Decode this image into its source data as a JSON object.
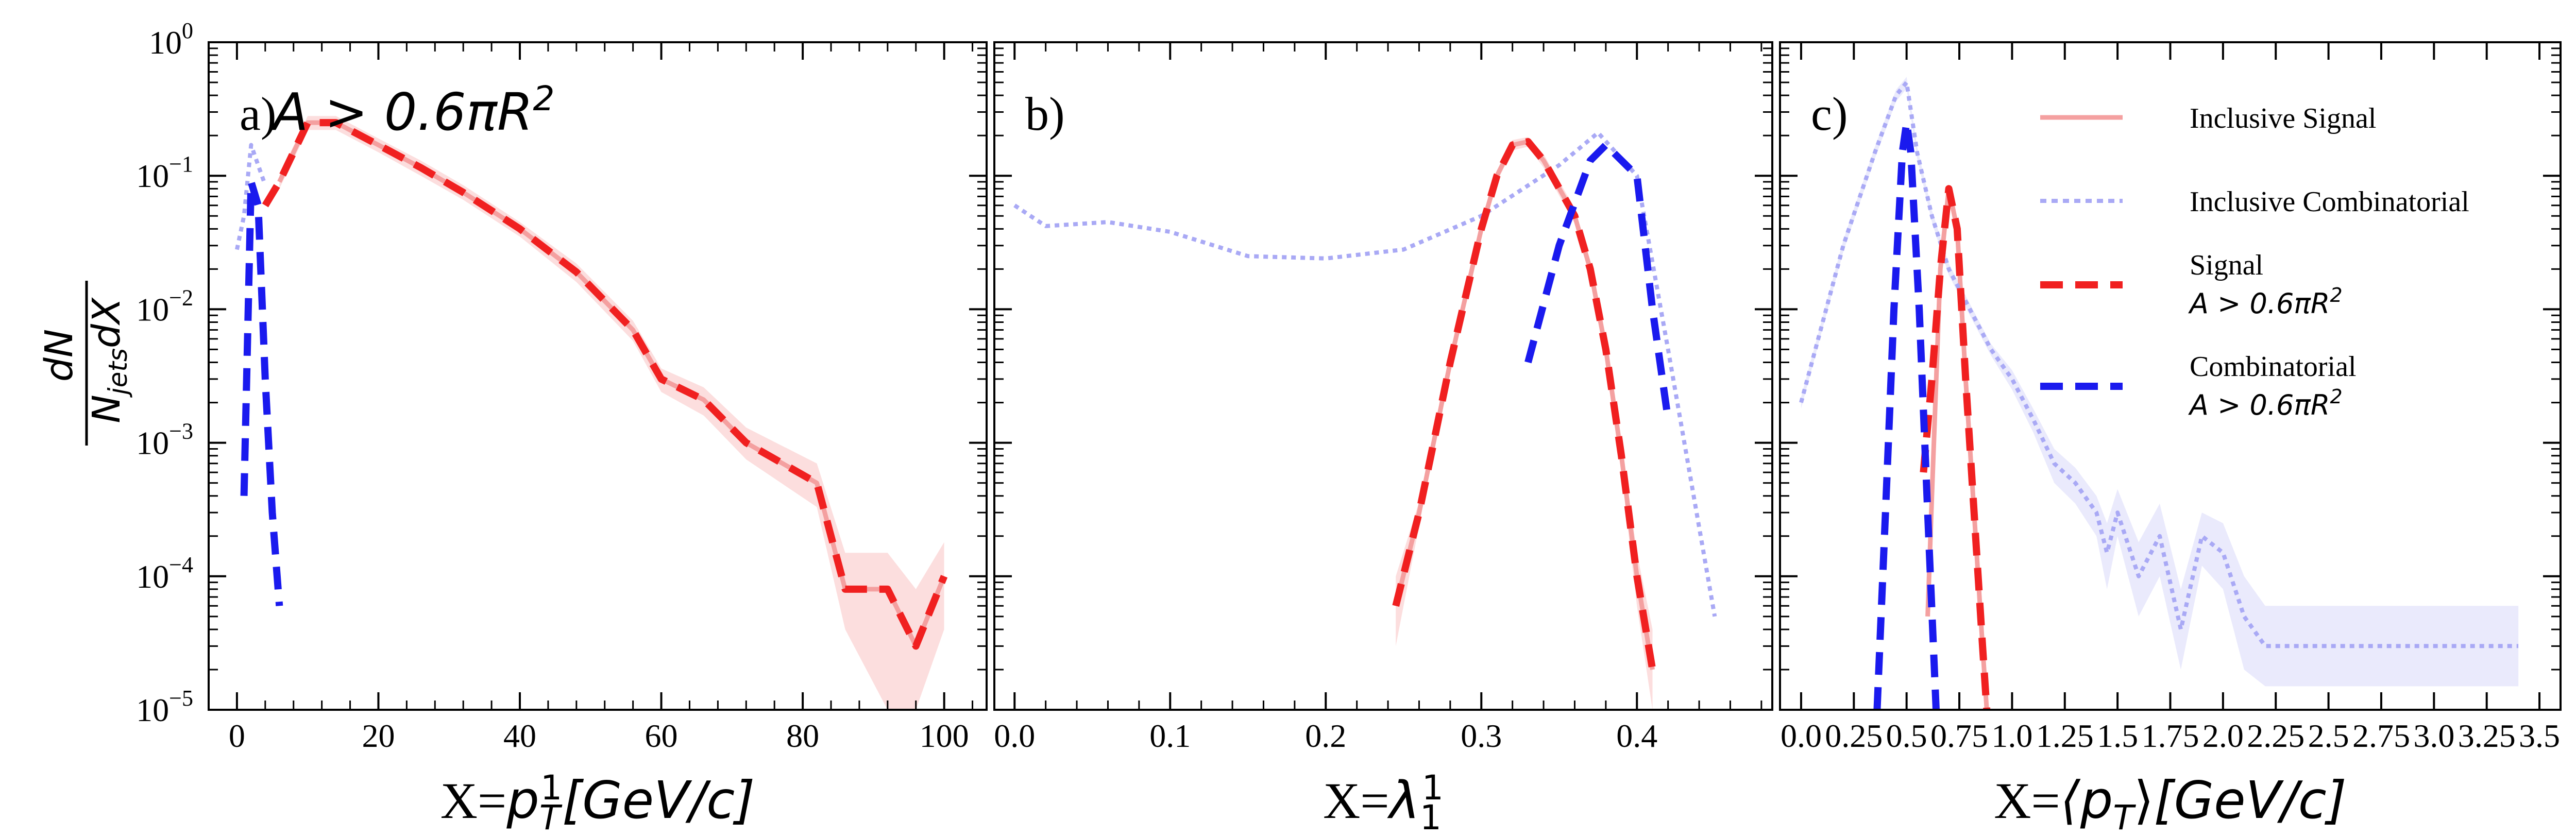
{
  "figure": {
    "ylabel_num": "dN",
    "ylabel_den": "N",
    "ylabel_den_sub": "jets",
    "ylabel_den_tail": "dX"
  },
  "chart_data": [
    {
      "type": "line",
      "panel_label": "a)",
      "annotation": "A > 0.6πR",
      "annotation_sup": "2",
      "xlabel_prefix": "X=",
      "xlabel_math": "p",
      "xlabel_sub": "T",
      "xlabel_sup": "1",
      "xlabel_unit": "[GeV/c]",
      "xlim": [
        -4,
        106
      ],
      "ylim": [
        1e-05,
        1
      ],
      "yscale": "log",
      "xticks": [
        0,
        20,
        40,
        60,
        80,
        100
      ],
      "xticklabels": [
        "0",
        "20",
        "40",
        "60",
        "80",
        "100"
      ],
      "yticks": [
        1,
        0.1,
        0.01,
        0.001,
        0.0001,
        1e-05
      ],
      "yticklabels": [
        {
          "base": "10",
          "exp": "0"
        },
        {
          "base": "10",
          "exp": "−1"
        },
        {
          "base": "10",
          "exp": "−2"
        },
        {
          "base": "10",
          "exp": "−3"
        },
        {
          "base": "10",
          "exp": "−4"
        },
        {
          "base": "10",
          "exp": "−5"
        }
      ],
      "series": [
        {
          "name": "Inclusive Signal",
          "style": "inc_sig",
          "x": [
            6,
            10,
            14,
            20,
            26,
            32,
            40,
            48,
            56,
            60,
            66,
            72,
            82,
            86,
            92,
            96,
            100
          ],
          "y": [
            0.09,
            0.25,
            0.25,
            0.17,
            0.115,
            0.075,
            0.04,
            0.019,
            0.007,
            0.003,
            0.0021,
            0.001,
            0.0005,
            8e-05,
            8e-05,
            3e-05,
            0.0001
          ],
          "band_lo": [
            0.08,
            0.22,
            0.22,
            0.15,
            0.1,
            0.066,
            0.035,
            0.016,
            0.0058,
            0.0024,
            0.0016,
            0.00075,
            0.00033,
            4e-05,
            1e-05,
            1e-05,
            4e-05
          ],
          "band_hi": [
            0.1,
            0.28,
            0.28,
            0.19,
            0.13,
            0.085,
            0.045,
            0.022,
            0.0082,
            0.0036,
            0.0026,
            0.0013,
            0.0007,
            0.00015,
            0.00015,
            8e-05,
            0.00018
          ]
        },
        {
          "name": "Inclusive Combinatorial",
          "style": "inc_comb",
          "x": [
            0,
            1,
            2,
            3,
            4
          ],
          "y": [
            0.028,
            0.05,
            0.17,
            0.12,
            0.085
          ]
        },
        {
          "name": "Signal A>0.6πR²",
          "style": "sig",
          "x": [
            4,
            6,
            10,
            14,
            20,
            26,
            32,
            40,
            48,
            56,
            60,
            66,
            72,
            82,
            86,
            92,
            96,
            100
          ],
          "y": [
            0.06,
            0.09,
            0.25,
            0.25,
            0.17,
            0.115,
            0.075,
            0.04,
            0.019,
            0.007,
            0.003,
            0.0021,
            0.001,
            0.0005,
            8e-05,
            8e-05,
            3e-05,
            0.0001
          ]
        },
        {
          "name": "Combinatorial A>0.6πR²",
          "style": "comb",
          "x": [
            1,
            2,
            3,
            4,
            5,
            6
          ],
          "y": [
            0.0004,
            0.09,
            0.06,
            0.003,
            0.0003,
            6e-05
          ]
        }
      ]
    },
    {
      "type": "line",
      "panel_label": "b)",
      "xlabel_prefix": "X=",
      "xlabel_math": "λ",
      "xlabel_sub": "1",
      "xlabel_sup": "1",
      "xlim": [
        -0.013,
        0.487
      ],
      "ylim": [
        1e-05,
        1
      ],
      "yscale": "log",
      "xticks": [
        0,
        0.1,
        0.2,
        0.3,
        0.4
      ],
      "xticklabels": [
        "0.0",
        "0.1",
        "0.2",
        "0.3",
        "0.4"
      ],
      "series": [
        {
          "name": "Inclusive Signal",
          "style": "inc_sig",
          "x": [
            0.245,
            0.26,
            0.28,
            0.3,
            0.31,
            0.32,
            0.33,
            0.34,
            0.36,
            0.37,
            0.38,
            0.39,
            0.4,
            0.41
          ],
          "y": [
            6e-05,
            0.0003,
            0.004,
            0.04,
            0.1,
            0.17,
            0.18,
            0.13,
            0.05,
            0.02,
            0.005,
            0.0008,
            0.0001,
            2e-05
          ],
          "band_lo": [
            3e-05,
            0.00024,
            0.0035,
            0.036,
            0.09,
            0.155,
            0.165,
            0.115,
            0.044,
            0.017,
            0.004,
            0.0006,
            6e-05,
            1e-05
          ],
          "band_hi": [
            0.0001,
            0.00036,
            0.0046,
            0.044,
            0.11,
            0.185,
            0.195,
            0.145,
            0.057,
            0.023,
            0.006,
            0.001,
            0.00015,
            4e-05
          ]
        },
        {
          "name": "Inclusive Combinatorial",
          "style": "inc_comb",
          "x": [
            0.0,
            0.02,
            0.06,
            0.1,
            0.15,
            0.2,
            0.25,
            0.3,
            0.35,
            0.375,
            0.4,
            0.42,
            0.45
          ],
          "y": [
            0.06,
            0.042,
            0.045,
            0.038,
            0.025,
            0.024,
            0.028,
            0.05,
            0.12,
            0.21,
            0.1,
            0.005,
            5e-05
          ]
        },
        {
          "name": "Signal A>0.6πR²",
          "style": "sig",
          "x": [
            0.245,
            0.26,
            0.28,
            0.3,
            0.31,
            0.32,
            0.33,
            0.34,
            0.36,
            0.37,
            0.38,
            0.39,
            0.4,
            0.41
          ],
          "y": [
            6e-05,
            0.0003,
            0.004,
            0.04,
            0.1,
            0.17,
            0.18,
            0.13,
            0.05,
            0.02,
            0.005,
            0.0008,
            0.0001,
            2e-05
          ]
        },
        {
          "name": "Combinatorial A>0.6πR²",
          "style": "comb",
          "x": [
            0.33,
            0.35,
            0.37,
            0.38,
            0.4,
            0.41,
            0.42
          ],
          "y": [
            0.004,
            0.03,
            0.13,
            0.17,
            0.1,
            0.01,
            0.0015
          ]
        }
      ]
    },
    {
      "type": "line",
      "panel_label": "c)",
      "xlabel_prefix": "X=",
      "xlabel_math": "⟨p",
      "xlabel_sub": "T",
      "xlabel_tail": "⟩",
      "xlabel_unit": "[GeV/c]",
      "xlim": [
        -0.1,
        3.6
      ],
      "ylim": [
        1e-05,
        1
      ],
      "yscale": "log",
      "xticks": [
        0,
        0.25,
        0.5,
        0.75,
        1.0,
        1.25,
        1.5,
        1.75,
        2.0,
        2.25,
        2.5,
        2.75,
        3.0,
        3.25,
        3.5
      ],
      "xticklabels": [
        "0.0",
        "0.25",
        "0.5",
        "0.75",
        "1.0",
        "1.25",
        "1.5",
        "1.75",
        "2.0",
        "2.25",
        "2.5",
        "2.75",
        "3.0",
        "3.25",
        "3.5"
      ],
      "legend_position": "upper-right",
      "series": [
        {
          "name": "Inclusive Signal",
          "style": "inc_sig",
          "x": [
            0.6,
            0.62,
            0.66,
            0.7,
            0.74,
            0.78,
            0.82,
            0.86,
            0.88
          ],
          "y": [
            5e-05,
            0.0004,
            0.02,
            0.08,
            0.04,
            0.003,
            0.0003,
            3e-05,
            1e-05
          ]
        },
        {
          "name": "Inclusive Combinatorial",
          "style": "inc_comb",
          "x": [
            0.0,
            0.2,
            0.35,
            0.45,
            0.5,
            0.55,
            0.62,
            0.7,
            0.8,
            0.9,
            1.0,
            1.1,
            1.2,
            1.3,
            1.4,
            1.45,
            1.5,
            1.6,
            1.7,
            1.8,
            1.9,
            2.0,
            2.1,
            2.2,
            2.5,
            3.0,
            3.4
          ],
          "y": [
            0.002,
            0.03,
            0.15,
            0.4,
            0.5,
            0.15,
            0.05,
            0.02,
            0.01,
            0.005,
            0.003,
            0.0015,
            0.0007,
            0.0005,
            0.0003,
            0.00015,
            0.0003,
            0.0001,
            0.0002,
            4e-05,
            0.0002,
            0.00015,
            5e-05,
            3e-05,
            3e-05,
            3e-05,
            3e-05
          ],
          "band_lo": [
            0.0018,
            0.027,
            0.135,
            0.36,
            0.45,
            0.135,
            0.045,
            0.018,
            0.009,
            0.0045,
            0.0025,
            0.0012,
            0.0005,
            0.00035,
            0.0002,
            8e-05,
            0.0002,
            5e-05,
            0.0001,
            2e-05,
            0.00012,
            8e-05,
            2e-05,
            1.5e-05,
            1.5e-05,
            1.5e-05,
            1.5e-05
          ],
          "band_hi": [
            0.0022,
            0.033,
            0.165,
            0.44,
            0.55,
            0.165,
            0.055,
            0.022,
            0.011,
            0.0055,
            0.0035,
            0.0018,
            0.0009,
            0.00065,
            0.0004,
            0.00025,
            0.00045,
            0.00018,
            0.00035,
            8e-05,
            0.0003,
            0.00025,
            0.0001,
            6e-05,
            6e-05,
            6e-05,
            6e-05
          ]
        },
        {
          "name": "Signal A>0.6πR²",
          "style": "sig",
          "x": [
            0.58,
            0.62,
            0.66,
            0.7,
            0.74,
            0.78,
            0.82,
            0.86,
            0.88
          ],
          "y": [
            0.0006,
            0.003,
            0.02,
            0.08,
            0.04,
            0.003,
            0.0003,
            3e-05,
            1e-05
          ]
        },
        {
          "name": "Combinatorial A>0.6πR²",
          "style": "comb",
          "x": [
            0.36,
            0.4,
            0.44,
            0.48,
            0.5,
            0.52,
            0.56,
            0.6,
            0.64
          ],
          "y": [
            1e-05,
            0.0003,
            0.01,
            0.15,
            0.25,
            0.15,
            0.01,
            0.0003,
            1e-05
          ]
        }
      ]
    }
  ],
  "legend": [
    {
      "style": "inc_sig",
      "line1": "Inclusive Signal"
    },
    {
      "style": "inc_comb",
      "line1": "Inclusive Combinatorial"
    },
    {
      "style": "sig",
      "line1": "Signal",
      "line2": "A > 0.6πR",
      "line2_sup": "2"
    },
    {
      "style": "comb",
      "line1": "Combinatorial",
      "line2": "A > 0.6πR",
      "line2_sup": "2"
    }
  ],
  "colors": {
    "inc_sig": "#f4a0a0",
    "inc_sig_band": "#fbd3d3",
    "inc_comb": "#a9a9f5",
    "inc_comb_band": "#e6e6fb",
    "sig": "#f02020",
    "comb": "#1a1aee",
    "axis": "#000000"
  }
}
